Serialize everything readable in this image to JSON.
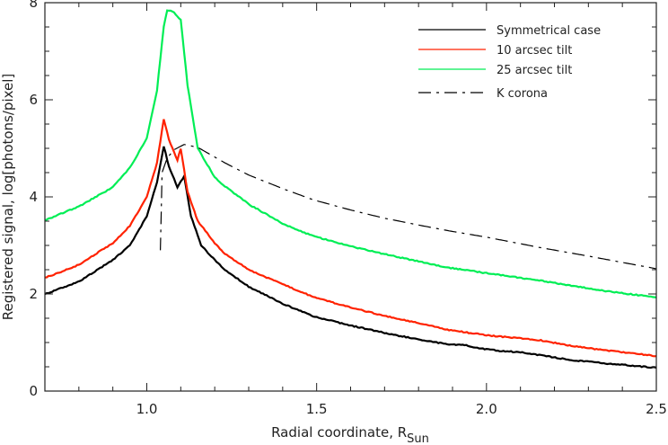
{
  "chart_data": {
    "type": "line",
    "title": "",
    "xlabel": "Radial coordinate, R",
    "xlabel_sub": "Sun",
    "ylabel": "Registered signal, log[photons/pixel]",
    "xlim": [
      0.7,
      2.5
    ],
    "ylim": [
      0,
      8
    ],
    "xticks": [
      1.0,
      1.5,
      2.0,
      2.5
    ],
    "xtick_labels": [
      "1.0",
      "1.5",
      "2.0",
      "2.5"
    ],
    "yticks": [
      0,
      2,
      4,
      6,
      8
    ],
    "ytick_labels": [
      "0",
      "2",
      "4",
      "6",
      "8"
    ],
    "grid": false,
    "legend_position": "top-right",
    "series": [
      {
        "name": "Symmetrical case",
        "color": "#000000",
        "style": "solid",
        "x": [
          0.7,
          0.8,
          0.9,
          0.95,
          1.0,
          1.03,
          1.05,
          1.065,
          1.09,
          1.11,
          1.13,
          1.16,
          1.2,
          1.23,
          1.3,
          1.4,
          1.49,
          1.6,
          1.7,
          1.8,
          1.89,
          1.93,
          2.0,
          2.05,
          2.1,
          2.155,
          2.25,
          2.35,
          2.5
        ],
        "y": [
          2.0,
          2.25,
          2.7,
          3.0,
          3.6,
          4.3,
          5.05,
          4.63,
          4.2,
          4.42,
          3.6,
          3.0,
          2.7,
          2.5,
          2.15,
          1.8,
          1.54,
          1.35,
          1.2,
          1.06,
          0.96,
          0.95,
          0.86,
          0.82,
          0.8,
          0.74,
          0.64,
          0.57,
          0.48
        ]
      },
      {
        "name": "10 arcsec tilt",
        "color": "#ff2200",
        "style": "solid",
        "x": [
          0.7,
          0.8,
          0.9,
          0.95,
          1.0,
          1.03,
          1.05,
          1.065,
          1.09,
          1.1,
          1.12,
          1.15,
          1.2,
          1.23,
          1.3,
          1.4,
          1.49,
          1.6,
          1.7,
          1.8,
          1.89,
          2.0,
          2.155,
          2.25,
          2.35,
          2.5
        ],
        "y": [
          2.33,
          2.6,
          3.05,
          3.4,
          4.0,
          4.7,
          5.6,
          5.18,
          4.75,
          5.0,
          4.1,
          3.5,
          3.05,
          2.83,
          2.5,
          2.2,
          1.94,
          1.72,
          1.55,
          1.4,
          1.26,
          1.15,
          1.05,
          0.93,
          0.84,
          0.72
        ]
      },
      {
        "name": "25 arcsec tilt",
        "color": "#00ee55",
        "style": "solid",
        "x": [
          0.7,
          0.8,
          0.9,
          0.95,
          1.0,
          1.03,
          1.05,
          1.06,
          1.08,
          1.1,
          1.12,
          1.15,
          1.2,
          1.23,
          1.3,
          1.4,
          1.49,
          1.6,
          1.7,
          1.8,
          1.89,
          2.0,
          2.155,
          2.25,
          2.35,
          2.5
        ],
        "y": [
          3.52,
          3.8,
          4.2,
          4.6,
          5.2,
          6.2,
          7.5,
          7.85,
          7.8,
          7.65,
          6.3,
          5.0,
          4.4,
          4.22,
          3.85,
          3.45,
          3.19,
          2.98,
          2.82,
          2.67,
          2.54,
          2.43,
          2.28,
          2.17,
          2.06,
          1.93
        ]
      },
      {
        "name": "K corona",
        "color": "#000000",
        "style": "dashdot",
        "x": [
          1.04,
          1.045,
          1.06,
          1.08,
          1.11,
          1.15,
          1.23,
          1.3,
          1.4,
          1.49,
          1.6,
          1.7,
          1.8,
          1.89,
          2.0,
          2.155,
          2.3,
          2.4,
          2.5
        ],
        "y": [
          2.9,
          4.5,
          4.8,
          4.97,
          5.08,
          5.02,
          4.7,
          4.45,
          4.17,
          3.94,
          3.73,
          3.56,
          3.42,
          3.3,
          3.17,
          2.96,
          2.78,
          2.65,
          2.52
        ]
      }
    ]
  }
}
